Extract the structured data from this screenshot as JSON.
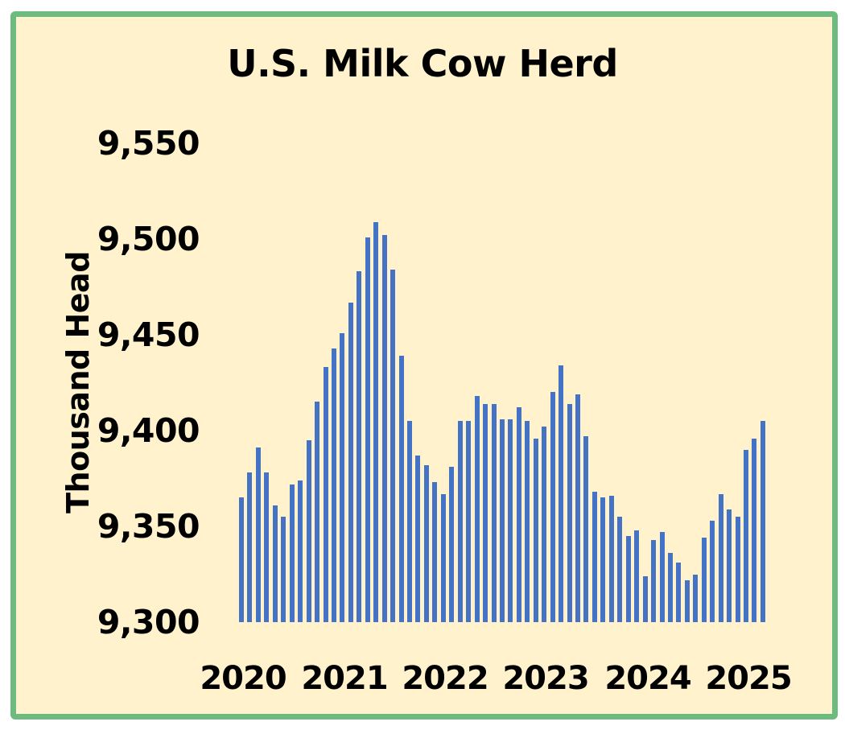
{
  "chart_data": {
    "type": "bar",
    "title": "U.S. Milk Cow Herd",
    "xlabel": "",
    "ylabel": "Thousand Head",
    "ylim": [
      9300,
      9550
    ],
    "yticks": [
      "9,300",
      "9,350",
      "9,400",
      "9,450",
      "9,500",
      "9,550"
    ],
    "xticks": [
      "2020",
      "2021",
      "2022",
      "2023",
      "2024",
      "2025"
    ],
    "grid": false,
    "legend": "none",
    "frequency": "monthly, Jan 2020 - Mar 2025",
    "bar_color": "#4472c4",
    "categories": [
      "2020-01",
      "2020-02",
      "2020-03",
      "2020-04",
      "2020-05",
      "2020-06",
      "2020-07",
      "2020-08",
      "2020-09",
      "2020-10",
      "2020-11",
      "2020-12",
      "2021-01",
      "2021-02",
      "2021-03",
      "2021-04",
      "2021-05",
      "2021-06",
      "2021-07",
      "2021-08",
      "2021-09",
      "2021-10",
      "2021-11",
      "2021-12",
      "2022-01",
      "2022-02",
      "2022-03",
      "2022-04",
      "2022-05",
      "2022-06",
      "2022-07",
      "2022-08",
      "2022-09",
      "2022-10",
      "2022-11",
      "2022-12",
      "2023-01",
      "2023-02",
      "2023-03",
      "2023-04",
      "2023-05",
      "2023-06",
      "2023-07",
      "2023-08",
      "2023-09",
      "2023-10",
      "2023-11",
      "2023-12",
      "2024-01",
      "2024-02",
      "2024-03",
      "2024-04",
      "2024-05",
      "2024-06",
      "2024-07",
      "2024-08",
      "2024-09",
      "2024-10",
      "2024-11",
      "2024-12",
      "2025-01",
      "2025-02",
      "2025-03"
    ],
    "values": [
      9365,
      9378,
      9391,
      9378,
      9361,
      9355,
      9372,
      9374,
      9395,
      9415,
      9433,
      9443,
      9451,
      9467,
      9483,
      9501,
      9509,
      9502,
      9484,
      9439,
      9405,
      9387,
      9382,
      9373,
      9367,
      9381,
      9405,
      9405,
      9418,
      9414,
      9414,
      9406,
      9406,
      9412,
      9405,
      9396,
      9402,
      9420,
      9434,
      9414,
      9419,
      9397,
      9368,
      9365,
      9366,
      9355,
      9345,
      9348,
      9324,
      9343,
      9347,
      9336,
      9331,
      9322,
      9325,
      9344,
      9353,
      9367,
      9359,
      9355,
      9390,
      9396,
      9405
    ]
  },
  "colors": {
    "background": "#fff2cc",
    "border": "#6dbb7f",
    "bars": "#4472c4"
  }
}
